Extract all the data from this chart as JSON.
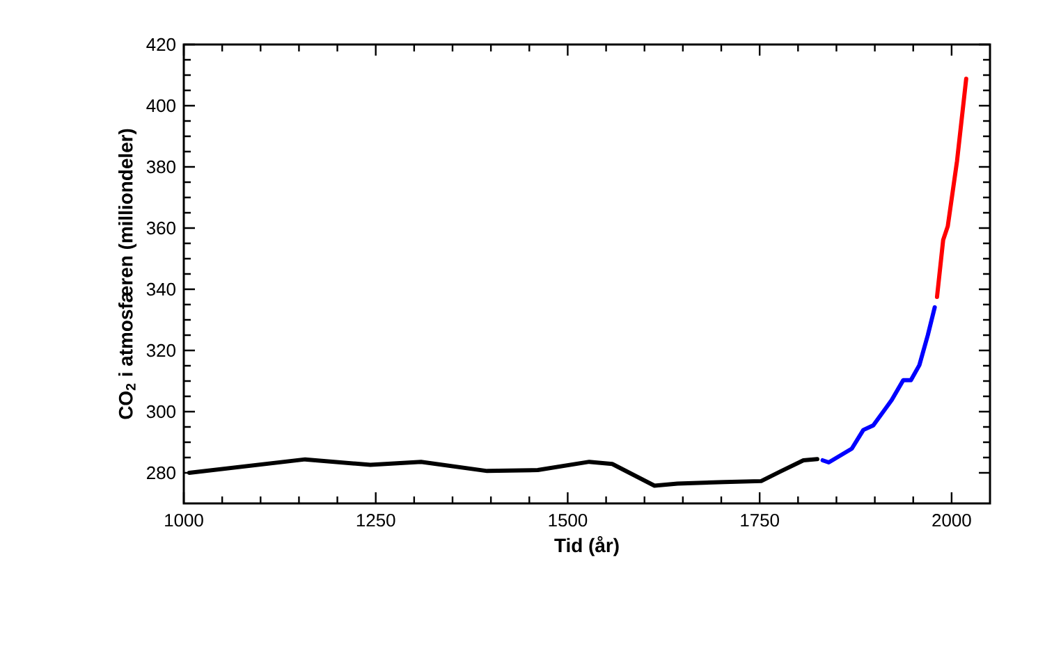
{
  "chart_data": {
    "type": "line",
    "xlabel": "Tid (år)",
    "ylabel": "CO$_{2}$ i atmosfæren (milliondeler)",
    "xlim": [
      1000,
      2050
    ],
    "ylim": [
      270,
      420
    ],
    "xticks": [
      1000,
      1250,
      1500,
      1750,
      2000
    ],
    "yticks": [
      280,
      300,
      320,
      340,
      360,
      380,
      400,
      420
    ],
    "line_style": "solid",
    "series": [
      {
        "color": "#000000",
        "x": [
          1007,
          1158,
          1243,
          1309,
          1395,
          1461,
          1528,
          1558,
          1613,
          1643,
          1704,
          1752,
          1776,
          1807,
          1825
        ],
        "values": [
          280,
          284.4,
          282.6,
          283.6,
          280.6,
          280.9,
          283.6,
          282.9,
          275.8,
          276.5,
          277,
          277.3,
          280.3,
          284.1,
          284.5
        ]
      },
      {
        "color": "#0000ff",
        "x": [
          1832,
          1840,
          1870,
          1885,
          1898,
          1922,
          1937,
          1947,
          1958,
          1969,
          1978
        ],
        "values": [
          284.1,
          283.4,
          287.9,
          294,
          295.5,
          303.8,
          310.3,
          310.3,
          315.2,
          325,
          334.1
        ]
      },
      {
        "color": "#ff0000",
        "x": [
          1981,
          1989,
          1995,
          2007,
          2019
        ],
        "values": [
          337.5,
          356.1,
          360.6,
          381.8,
          408.8
        ]
      }
    ]
  }
}
